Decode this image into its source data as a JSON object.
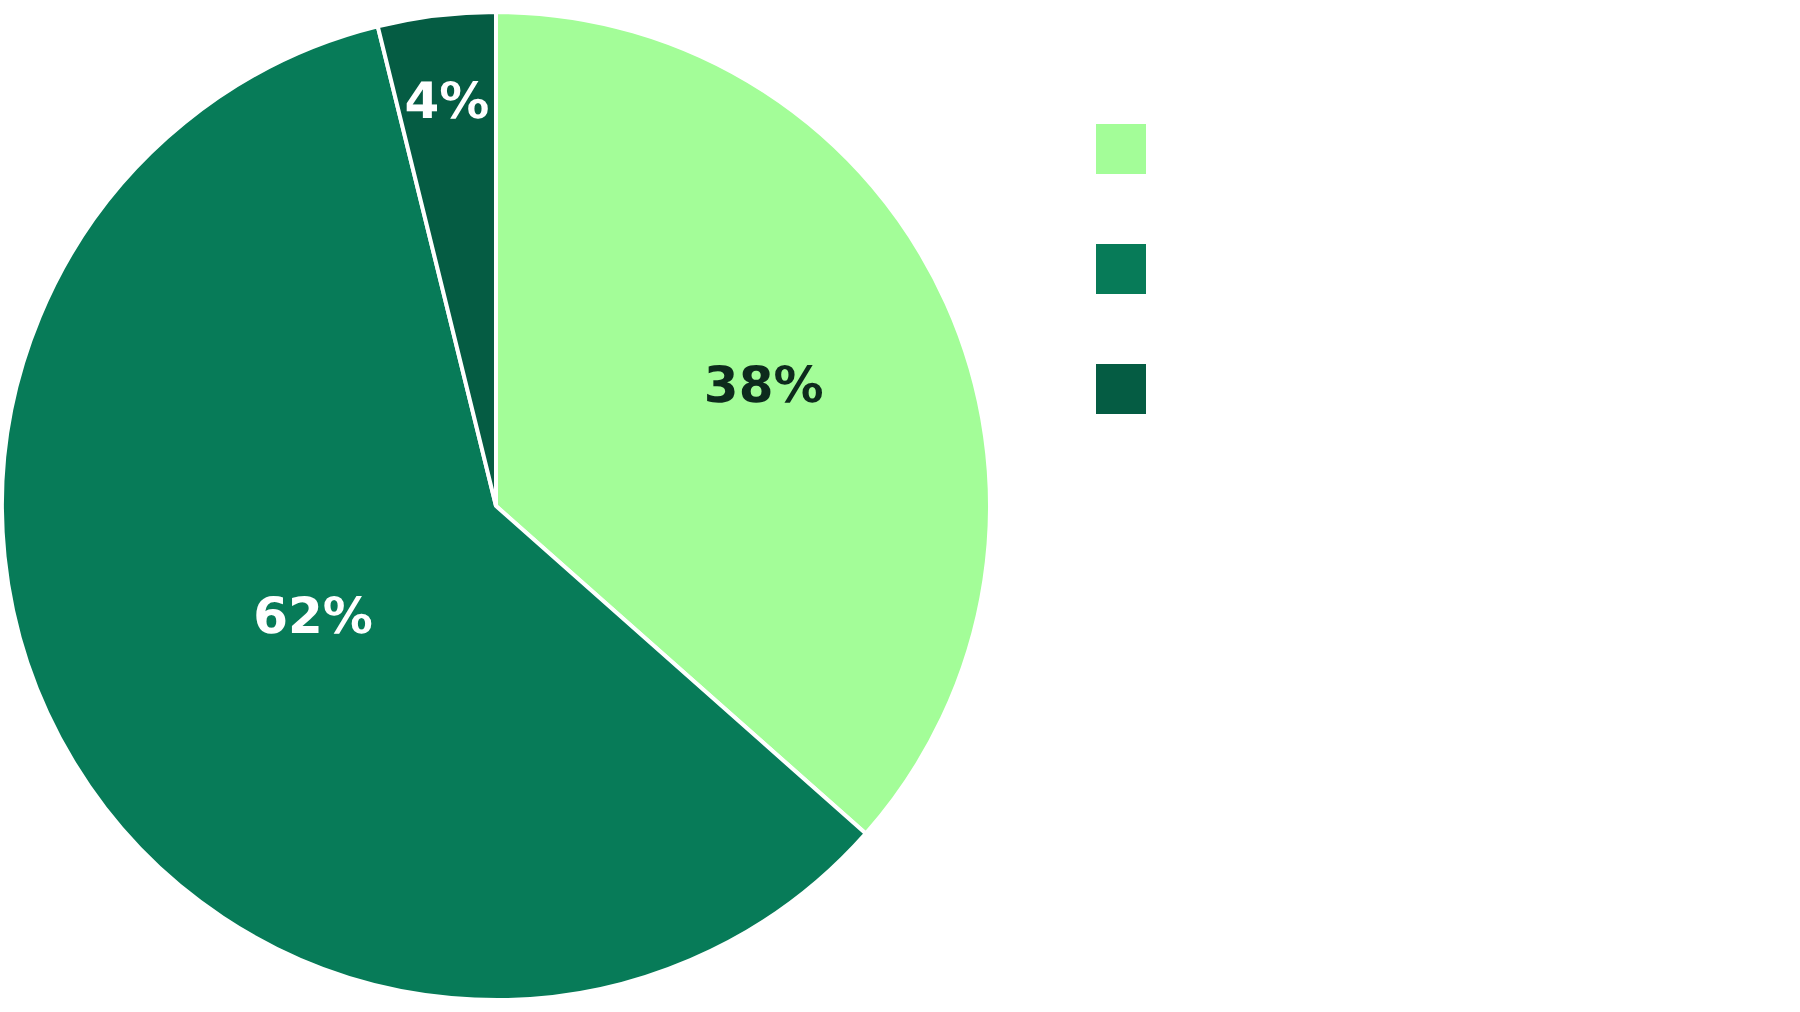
{
  "chart_data": {
    "type": "pie",
    "categories": [
      null,
      null,
      null
    ],
    "values": [
      38,
      62,
      4
    ],
    "colors": [
      "#a3fd98",
      "#077b58",
      "#055c43"
    ],
    "value_labels": [
      "38%",
      "62%",
      "4%"
    ]
  }
}
